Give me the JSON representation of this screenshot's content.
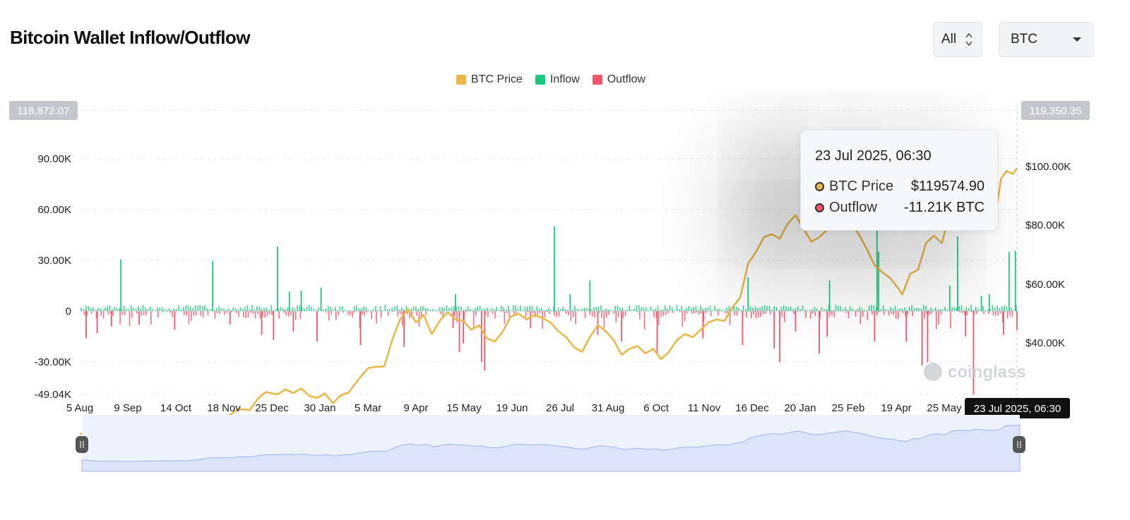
{
  "header": {
    "title": "Bitcoin Wallet Inflow/Outflow",
    "range_select": "All",
    "asset_select": "BTC"
  },
  "colors": {
    "price": "#E8B94A",
    "inflow": "#1EC77E",
    "outflow": "#F0566A",
    "navigator_fill": "#DCE4FA",
    "navigator_line": "#9FB1EE"
  },
  "tooltip": {
    "title": "23 Jul 2025, 06:30",
    "rows": [
      {
        "label": "BTC Price",
        "value": "$119574.90",
        "color": "#E8B94A"
      },
      {
        "label": "Outflow",
        "value": "-11.21K BTC",
        "color": "#F0566A"
      }
    ]
  },
  "watermark": "coinglass",
  "chart_data": {
    "type": "bar",
    "title": "Bitcoin Wallet Inflow/Outflow",
    "legend": [
      "BTC Price",
      "Inflow",
      "Outflow"
    ],
    "legend_position": "top-center",
    "x_ticks": [
      "5 Aug",
      "9 Sep",
      "14 Oct",
      "18 Nov",
      "25 Dec",
      "30 Jan",
      "5 Mar",
      "9 Apr",
      "15 May",
      "19 Jun",
      "26 Jul",
      "31 Aug",
      "6 Oct",
      "11 Nov",
      "16 Dec",
      "20 Jan",
      "25 Feb",
      "19 Apr",
      "25 May"
    ],
    "x_highlight": "23 Jul 2025, 06:30",
    "y_left": {
      "ticks": [
        "90.00K",
        "60.00K",
        "30.00K",
        "0",
        "-30.00K",
        "-49.04K"
      ],
      "top_badge": "118,872.07",
      "range": [
        -49040,
        118872.07
      ]
    },
    "y_right": {
      "ticks": [
        "$100.00K",
        "$80.00K",
        "$60.00K",
        "$40.00K"
      ],
      "top_badge": "119,350.35"
    },
    "grid": true,
    "series": [
      {
        "name": "BTC Price",
        "type": "line",
        "unit": "USD",
        "points": [
          [
            0,
            29200
          ],
          [
            6,
            29000
          ],
          [
            20,
            26000
          ],
          [
            40,
            25800
          ],
          [
            60,
            25500
          ],
          [
            80,
            26200
          ],
          [
            100,
            26800
          ],
          [
            120,
            27200
          ],
          [
            130,
            27000
          ],
          [
            140,
            28500
          ],
          [
            150,
            31000
          ],
          [
            160,
            34500
          ],
          [
            175,
            34800
          ],
          [
            190,
            35500
          ],
          [
            200,
            37500
          ],
          [
            215,
            37200
          ],
          [
            225,
            41000
          ],
          [
            235,
            43300
          ],
          [
            250,
            42500
          ],
          [
            260,
            44200
          ],
          [
            270,
            43000
          ],
          [
            280,
            44500
          ],
          [
            290,
            42000
          ],
          [
            300,
            41300
          ],
          [
            310,
            42800
          ],
          [
            320,
            39500
          ],
          [
            330,
            42200
          ],
          [
            340,
            43200
          ],
          [
            355,
            48500
          ],
          [
            365,
            51500
          ],
          [
            375,
            51900
          ],
          [
            385,
            52000
          ],
          [
            395,
            61000
          ],
          [
            405,
            68000
          ],
          [
            415,
            71500
          ],
          [
            425,
            67000
          ],
          [
            435,
            69500
          ],
          [
            445,
            63000
          ],
          [
            455,
            67500
          ],
          [
            465,
            70500
          ],
          [
            475,
            68000
          ],
          [
            485,
            67500
          ],
          [
            495,
            64500
          ],
          [
            505,
            66000
          ],
          [
            515,
            61500
          ],
          [
            525,
            60500
          ],
          [
            535,
            64000
          ],
          [
            545,
            69000
          ],
          [
            555,
            70000
          ],
          [
            565,
            68000
          ],
          [
            575,
            69500
          ],
          [
            585,
            68500
          ],
          [
            595,
            67000
          ],
          [
            605,
            64000
          ],
          [
            615,
            62000
          ],
          [
            625,
            58500
          ],
          [
            635,
            57000
          ],
          [
            645,
            62000
          ],
          [
            655,
            66000
          ],
          [
            665,
            64000
          ],
          [
            675,
            61000
          ],
          [
            685,
            56000
          ],
          [
            695,
            58000
          ],
          [
            705,
            59000
          ],
          [
            715,
            56500
          ],
          [
            725,
            58000
          ],
          [
            735,
            54500
          ],
          [
            745,
            57000
          ],
          [
            755,
            61000
          ],
          [
            765,
            63000
          ],
          [
            775,
            62000
          ],
          [
            785,
            64500
          ],
          [
            795,
            67000
          ],
          [
            805,
            68000
          ],
          [
            815,
            67500
          ],
          [
            825,
            72000
          ],
          [
            835,
            75500
          ],
          [
            845,
            87000
          ],
          [
            855,
            91000
          ],
          [
            865,
            96000
          ],
          [
            875,
            97000
          ],
          [
            885,
            95500
          ],
          [
            895,
            100500
          ],
          [
            905,
            103500
          ],
          [
            915,
            99000
          ],
          [
            925,
            94500
          ],
          [
            935,
            96000
          ],
          [
            945,
            98500
          ],
          [
            955,
            101500
          ],
          [
            965,
            104500
          ],
          [
            975,
            101000
          ],
          [
            985,
            97000
          ],
          [
            995,
            92000
          ],
          [
            1005,
            86500
          ],
          [
            1015,
            84000
          ],
          [
            1025,
            82000
          ],
          [
            1035,
            78500
          ],
          [
            1040,
            76500
          ],
          [
            1050,
            83500
          ],
          [
            1060,
            85000
          ],
          [
            1070,
            94000
          ],
          [
            1080,
            96500
          ],
          [
            1090,
            94000
          ],
          [
            1100,
            104000
          ],
          [
            1110,
            105500
          ],
          [
            1120,
            104500
          ],
          [
            1130,
            108500
          ],
          [
            1140,
            106500
          ],
          [
            1150,
            105000
          ],
          [
            1160,
            107500
          ],
          [
            1165,
            116000
          ],
          [
            1172,
            118500
          ],
          [
            1180,
            117500
          ],
          [
            1185,
            119574.9
          ]
        ]
      },
      {
        "name": "Inflow",
        "type": "bar",
        "unit": "BTC",
        "points": [
          [
            52,
            30500
          ],
          [
            168,
            29500
          ],
          [
            250,
            38000
          ],
          [
            265,
            11500
          ],
          [
            280,
            12000
          ],
          [
            305,
            14000
          ],
          [
            475,
            10000
          ],
          [
            600,
            50000
          ],
          [
            620,
            10000
          ],
          [
            645,
            18000
          ],
          [
            845,
            20000
          ],
          [
            948,
            18000
          ],
          [
            1008,
            49000
          ],
          [
            1010,
            35000
          ],
          [
            1100,
            15000
          ],
          [
            1110,
            44000
          ],
          [
            1140,
            9000
          ],
          [
            1175,
            35000
          ],
          [
            1183,
            35500
          ],
          [
            1150,
            10000
          ]
        ]
      },
      {
        "name": "Outflow",
        "type": "bar",
        "unit": "BTC",
        "points": [
          [
            8,
            -16000
          ],
          [
            22,
            -13000
          ],
          [
            40,
            -9000
          ],
          [
            75,
            -8000
          ],
          [
            120,
            -11000
          ],
          [
            190,
            -8000
          ],
          [
            230,
            -14000
          ],
          [
            245,
            -17000
          ],
          [
            270,
            -12000
          ],
          [
            300,
            -18000
          ],
          [
            355,
            -20000
          ],
          [
            410,
            -21000
          ],
          [
            472,
            -10000
          ],
          [
            480,
            -24000
          ],
          [
            485,
            -19000
          ],
          [
            508,
            -30000
          ],
          [
            512,
            -35000
          ],
          [
            570,
            -10000
          ],
          [
            655,
            -14000
          ],
          [
            685,
            -18000
          ],
          [
            730,
            -25000
          ],
          [
            788,
            -16000
          ],
          [
            838,
            -20000
          ],
          [
            878,
            -22000
          ],
          [
            885,
            -30000
          ],
          [
            905,
            -12000
          ],
          [
            935,
            -25000
          ],
          [
            945,
            -15000
          ],
          [
            1005,
            -18000
          ],
          [
            1045,
            -18000
          ],
          [
            1065,
            -32000
          ],
          [
            1072,
            -30000
          ],
          [
            1130,
            -49000
          ],
          [
            1120,
            -15000
          ],
          [
            1168,
            -14000
          ],
          [
            1185,
            -11210
          ]
        ]
      }
    ]
  },
  "navigator": {
    "handle_left": "left-handle",
    "handle_right": "right-handle"
  }
}
